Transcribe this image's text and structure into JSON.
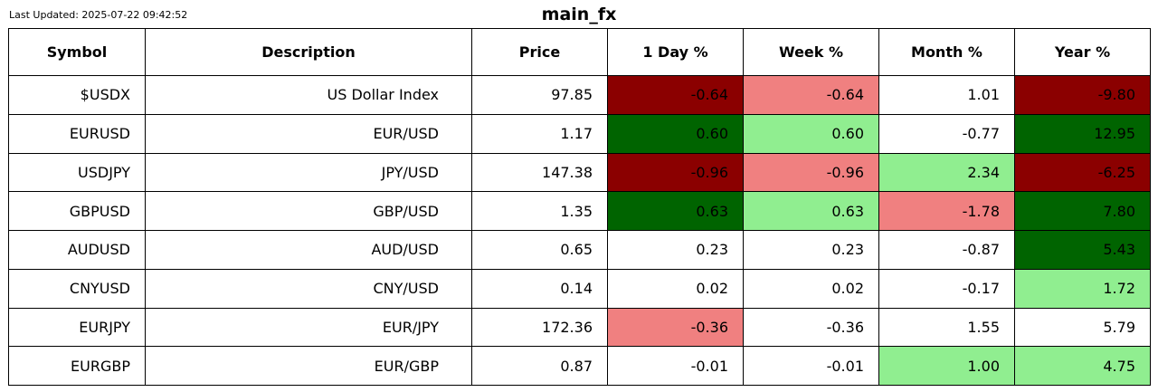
{
  "last_updated": "Last Updated: 2025-07-22 09:42:52",
  "colors": {
    "dark_red": "#8b0000",
    "light_red": "#f08080",
    "dark_green": "#006400",
    "light_green": "#90ee90",
    "none": "#ffffff"
  },
  "chart_data": {
    "type": "table",
    "title": "main_fx",
    "columns": [
      "Symbol",
      "Description",
      "Price",
      "1 Day %",
      "Week %",
      "Month %",
      "Year %"
    ],
    "rows": [
      {
        "symbol": "$USDX",
        "description": "US Dollar Index",
        "price": "97.85",
        "values": [
          "-0.64",
          "-0.64",
          "1.01",
          "-9.80"
        ],
        "colors": [
          "dark_red",
          "light_red",
          "none",
          "dark_red"
        ]
      },
      {
        "symbol": "EURUSD",
        "description": "EUR/USD",
        "price": "1.17",
        "values": [
          "0.60",
          "0.60",
          "-0.77",
          "12.95"
        ],
        "colors": [
          "dark_green",
          "light_green",
          "none",
          "dark_green"
        ]
      },
      {
        "symbol": "USDJPY",
        "description": "JPY/USD",
        "price": "147.38",
        "values": [
          "-0.96",
          "-0.96",
          "2.34",
          "-6.25"
        ],
        "colors": [
          "dark_red",
          "light_red",
          "light_green",
          "dark_red"
        ]
      },
      {
        "symbol": "GBPUSD",
        "description": "GBP/USD",
        "price": "1.35",
        "values": [
          "0.63",
          "0.63",
          "-1.78",
          "7.80"
        ],
        "colors": [
          "dark_green",
          "light_green",
          "light_red",
          "dark_green"
        ]
      },
      {
        "symbol": "AUDUSD",
        "description": "AUD/USD",
        "price": "0.65",
        "values": [
          "0.23",
          "0.23",
          "-0.87",
          "5.43"
        ],
        "colors": [
          "none",
          "none",
          "none",
          "dark_green"
        ]
      },
      {
        "symbol": "CNYUSD",
        "description": "CNY/USD",
        "price": "0.14",
        "values": [
          "0.02",
          "0.02",
          "-0.17",
          "1.72"
        ],
        "colors": [
          "none",
          "none",
          "none",
          "light_green"
        ]
      },
      {
        "symbol": "EURJPY",
        "description": "EUR/JPY",
        "price": "172.36",
        "values": [
          "-0.36",
          "-0.36",
          "1.55",
          "5.79"
        ],
        "colors": [
          "light_red",
          "none",
          "none",
          "none"
        ]
      },
      {
        "symbol": "EURGBP",
        "description": "EUR/GBP",
        "price": "0.87",
        "values": [
          "-0.01",
          "-0.01",
          "1.00",
          "4.75"
        ],
        "colors": [
          "none",
          "none",
          "light_green",
          "light_green"
        ]
      }
    ]
  }
}
